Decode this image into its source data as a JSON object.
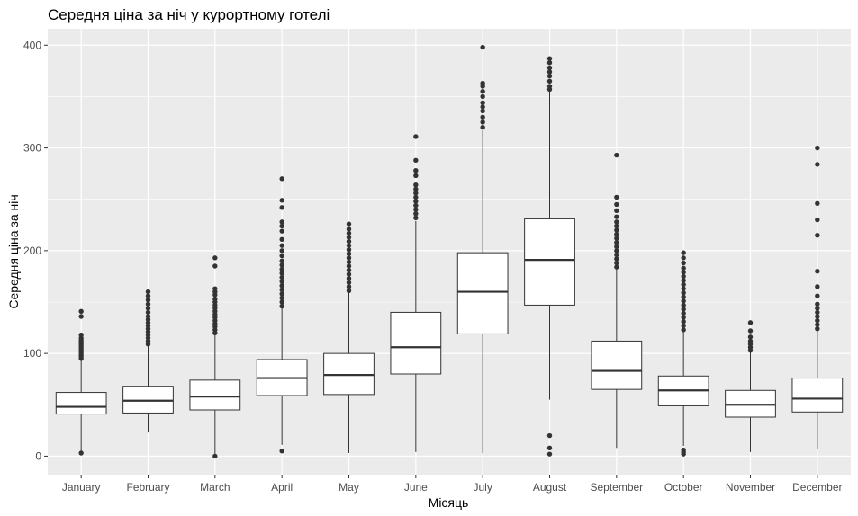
{
  "chart_data": {
    "type": "boxplot",
    "title": "Середня ціна за ніч у курортному готелі",
    "xlabel": "Місяць",
    "ylabel": "Середня ціна за ніч",
    "ylim": [
      -18,
      416
    ],
    "yticks": [
      0,
      100,
      200,
      300,
      400
    ],
    "grid": true,
    "colors": {
      "panel": "#ebebeb",
      "grid_major": "#ffffff",
      "box_fill": "#ffffff",
      "box_line": "#333333"
    },
    "categories": [
      "January",
      "February",
      "March",
      "April",
      "May",
      "June",
      "July",
      "August",
      "September",
      "October",
      "November",
      "December"
    ],
    "boxes": [
      {
        "month": "January",
        "whisker_low": 5,
        "q1": 41,
        "median": 48,
        "q3": 62,
        "whisker_high": 93,
        "outliers": [
          3,
          95,
          97,
          99,
          101,
          103,
          105,
          107,
          109,
          111,
          113,
          115,
          118,
          136,
          141
        ]
      },
      {
        "month": "February",
        "whisker_low": 23,
        "q1": 42,
        "median": 54,
        "q3": 68,
        "whisker_high": 107,
        "outliers": [
          109,
          112,
          115,
          118,
          121,
          124,
          127,
          130,
          133,
          136,
          140,
          144,
          148,
          152,
          156,
          160
        ]
      },
      {
        "month": "March",
        "whisker_low": 2,
        "q1": 45,
        "median": 58,
        "q3": 74,
        "whisker_high": 118,
        "outliers": [
          0,
          120,
          123,
          126,
          129,
          132,
          135,
          138,
          141,
          144,
          147,
          150,
          153,
          157,
          160,
          163,
          185,
          193
        ]
      },
      {
        "month": "April",
        "whisker_low": 11,
        "q1": 59,
        "median": 76,
        "q3": 94,
        "whisker_high": 144,
        "outliers": [
          5,
          146,
          150,
          154,
          158,
          162,
          166,
          170,
          174,
          178,
          182,
          186,
          190,
          195,
          200,
          205,
          211,
          219,
          224,
          228,
          242,
          249,
          270
        ]
      },
      {
        "month": "May",
        "whisker_low": 3,
        "q1": 60,
        "median": 79,
        "q3": 100,
        "whisker_high": 159,
        "outliers": [
          161,
          165,
          169,
          173,
          177,
          181,
          185,
          189,
          193,
          197,
          201,
          205,
          209,
          213,
          217,
          221,
          226
        ]
      },
      {
        "month": "June",
        "whisker_low": 4,
        "q1": 80,
        "median": 106,
        "q3": 140,
        "whisker_high": 229,
        "outliers": [
          232,
          236,
          240,
          244,
          248,
          252,
          256,
          260,
          264,
          273,
          278,
          288,
          311
        ]
      },
      {
        "month": "July",
        "whisker_low": 3,
        "q1": 119,
        "median": 160,
        "q3": 198,
        "whisker_high": 317,
        "outliers": [
          320,
          325,
          330,
          336,
          340,
          344,
          350,
          355,
          360,
          363,
          398
        ]
      },
      {
        "month": "August",
        "whisker_low": 55,
        "q1": 147,
        "median": 191,
        "q3": 231,
        "whisker_high": 355,
        "outliers": [
          2,
          8,
          20,
          357,
          360,
          365,
          370,
          374,
          378,
          383,
          387
        ]
      },
      {
        "month": "September",
        "whisker_low": 8,
        "q1": 65,
        "median": 83,
        "q3": 112,
        "whisker_high": 182,
        "outliers": [
          184,
          188,
          192,
          196,
          200,
          204,
          208,
          212,
          216,
          220,
          224,
          228,
          233,
          239,
          245,
          252,
          293
        ]
      },
      {
        "month": "October",
        "whisker_low": 10,
        "q1": 49,
        "median": 64,
        "q3": 78,
        "whisker_high": 121,
        "outliers": [
          2,
          4,
          6,
          123,
          127,
          131,
          135,
          139,
          143,
          147,
          151,
          155,
          159,
          163,
          167,
          171,
          175,
          179,
          183,
          188,
          193,
          198
        ]
      },
      {
        "month": "November",
        "whisker_low": 4,
        "q1": 38,
        "median": 50,
        "q3": 64,
        "whisker_high": 101,
        "outliers": [
          103,
          106,
          109,
          112,
          116,
          122,
          130
        ]
      },
      {
        "month": "December",
        "whisker_low": 7,
        "q1": 43,
        "median": 56,
        "q3": 76,
        "whisker_high": 122,
        "outliers": [
          124,
          128,
          132,
          136,
          140,
          144,
          148,
          156,
          165,
          180,
          215,
          230,
          246,
          284,
          300
        ]
      }
    ]
  }
}
